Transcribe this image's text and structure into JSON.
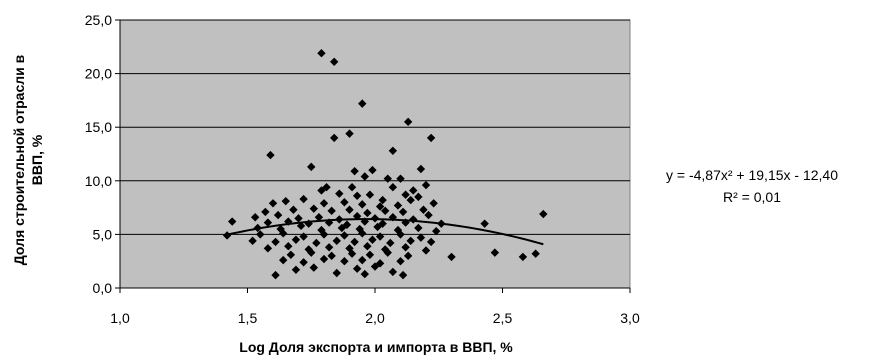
{
  "chart_data": {
    "type": "scatter",
    "xlabel": "Log Доля экспорта и импорта в ВВП, %",
    "ylabel_line1": "Доля строительной отрасли в",
    "ylabel_line2": "ВВП, %",
    "xlim": [
      1.0,
      3.0
    ],
    "ylim": [
      0.0,
      25.0
    ],
    "x_ticks": [
      "1,0",
      "1,5",
      "2,0",
      "2,5",
      "3,0"
    ],
    "y_ticks": [
      "0,0",
      "5,0",
      "10,0",
      "15,0",
      "20,0",
      "25,0"
    ],
    "x_tick_values": [
      1.0,
      1.5,
      2.0,
      2.5,
      3.0
    ],
    "y_tick_values": [
      0,
      5,
      10,
      15,
      20,
      25
    ],
    "grid": true,
    "plot_background": "#c0c0c0",
    "marker_color": "#000000",
    "marker": "diamond",
    "trendline": {
      "type": "polynomial",
      "coefficients": [
        -4.87,
        19.15,
        -12.4
      ],
      "x_range": [
        1.42,
        2.66
      ],
      "equation_text": "y = -4,87x² + 19,15x - 12,40",
      "r2_text": "R² = 0,01"
    },
    "points": [
      [
        1.79,
        21.9
      ],
      [
        1.84,
        21.1
      ],
      [
        1.95,
        17.2
      ],
      [
        2.13,
        15.5
      ],
      [
        1.9,
        14.4
      ],
      [
        1.84,
        14.0
      ],
      [
        2.22,
        14.0
      ],
      [
        1.59,
        12.4
      ],
      [
        2.07,
        12.8
      ],
      [
        1.75,
        11.3
      ],
      [
        1.92,
        10.9
      ],
      [
        1.99,
        11.0
      ],
      [
        2.18,
        11.1
      ],
      [
        1.96,
        10.4
      ],
      [
        2.05,
        10.2
      ],
      [
        2.1,
        10.2
      ],
      [
        1.91,
        9.4
      ],
      [
        1.79,
        9.1
      ],
      [
        1.81,
        9.4
      ],
      [
        2.07,
        9.4
      ],
      [
        2.15,
        9.1
      ],
      [
        2.2,
        9.6
      ],
      [
        1.86,
        8.8
      ],
      [
        1.93,
        8.6
      ],
      [
        1.98,
        8.7
      ],
      [
        2.03,
        8.2
      ],
      [
        2.12,
        8.7
      ],
      [
        2.17,
        8.5
      ],
      [
        1.65,
        8.1
      ],
      [
        1.72,
        8.3
      ],
      [
        1.8,
        7.9
      ],
      [
        1.88,
        8.0
      ],
      [
        1.95,
        7.8
      ],
      [
        2.02,
        7.6
      ],
      [
        2.09,
        7.7
      ],
      [
        2.14,
        8.2
      ],
      [
        2.23,
        7.9
      ],
      [
        1.6,
        7.9
      ],
      [
        1.57,
        7.1
      ],
      [
        1.68,
        7.3
      ],
      [
        1.76,
        7.4
      ],
      [
        1.83,
        7.2
      ],
      [
        1.9,
        7.3
      ],
      [
        1.97,
        7.0
      ],
      [
        2.04,
        7.2
      ],
      [
        2.11,
        7.1
      ],
      [
        2.19,
        7.3
      ],
      [
        1.53,
        6.6
      ],
      [
        1.62,
        6.8
      ],
      [
        1.7,
        6.5
      ],
      [
        1.78,
        6.6
      ],
      [
        1.86,
        6.4
      ],
      [
        1.93,
        6.7
      ],
      [
        2.0,
        6.5
      ],
      [
        2.07,
        6.6
      ],
      [
        2.15,
        6.4
      ],
      [
        2.21,
        6.8
      ],
      [
        1.44,
        6.2
      ],
      [
        1.58,
        6.1
      ],
      [
        1.66,
        6.2
      ],
      [
        1.74,
        6.0
      ],
      [
        1.82,
        6.1
      ],
      [
        1.89,
        5.9
      ],
      [
        1.96,
        6.2
      ],
      [
        2.03,
        6.0
      ],
      [
        2.12,
        6.1
      ],
      [
        2.26,
        6.0
      ],
      [
        2.43,
        6.0
      ],
      [
        2.66,
        6.9
      ],
      [
        1.54,
        5.6
      ],
      [
        1.63,
        5.5
      ],
      [
        1.71,
        5.8
      ],
      [
        1.79,
        5.4
      ],
      [
        1.87,
        5.6
      ],
      [
        1.94,
        5.5
      ],
      [
        2.01,
        5.7
      ],
      [
        2.09,
        5.4
      ],
      [
        2.17,
        5.6
      ],
      [
        2.24,
        5.3
      ],
      [
        1.42,
        4.9
      ],
      [
        1.55,
        5.0
      ],
      [
        1.64,
        5.1
      ],
      [
        1.72,
        4.8
      ],
      [
        1.8,
        5.0
      ],
      [
        1.88,
        4.9
      ],
      [
        1.95,
        5.1
      ],
      [
        2.02,
        4.8
      ],
      [
        2.1,
        5.0
      ],
      [
        2.18,
        4.7
      ],
      [
        1.52,
        4.4
      ],
      [
        1.61,
        4.3
      ],
      [
        1.69,
        4.5
      ],
      [
        1.77,
        4.2
      ],
      [
        1.85,
        4.4
      ],
      [
        1.92,
        4.3
      ],
      [
        1.99,
        4.5
      ],
      [
        2.06,
        4.2
      ],
      [
        2.14,
        4.4
      ],
      [
        2.22,
        4.3
      ],
      [
        1.58,
        3.7
      ],
      [
        1.66,
        3.9
      ],
      [
        1.74,
        3.6
      ],
      [
        1.82,
        3.8
      ],
      [
        1.9,
        3.7
      ],
      [
        1.97,
        3.9
      ],
      [
        2.04,
        3.6
      ],
      [
        2.12,
        3.8
      ],
      [
        2.2,
        3.5
      ],
      [
        2.47,
        3.3
      ],
      [
        1.67,
        3.1
      ],
      [
        1.75,
        3.3
      ],
      [
        1.83,
        3.0
      ],
      [
        1.91,
        3.2
      ],
      [
        1.98,
        3.1
      ],
      [
        2.05,
        3.3
      ],
      [
        2.13,
        3.0
      ],
      [
        2.3,
        2.9
      ],
      [
        2.58,
        2.9
      ],
      [
        2.63,
        3.2
      ],
      [
        1.64,
        2.6
      ],
      [
        1.72,
        2.4
      ],
      [
        1.8,
        2.7
      ],
      [
        1.88,
        2.5
      ],
      [
        1.95,
        2.6
      ],
      [
        2.02,
        2.3
      ],
      [
        2.1,
        2.5
      ],
      [
        1.61,
        1.2
      ],
      [
        1.76,
        1.9
      ],
      [
        1.85,
        1.4
      ],
      [
        1.93,
        1.8
      ],
      [
        2.0,
        2.0
      ],
      [
        2.07,
        1.5
      ],
      [
        2.11,
        1.2
      ],
      [
        1.69,
        1.7
      ],
      [
        1.96,
        1.3
      ]
    ]
  }
}
